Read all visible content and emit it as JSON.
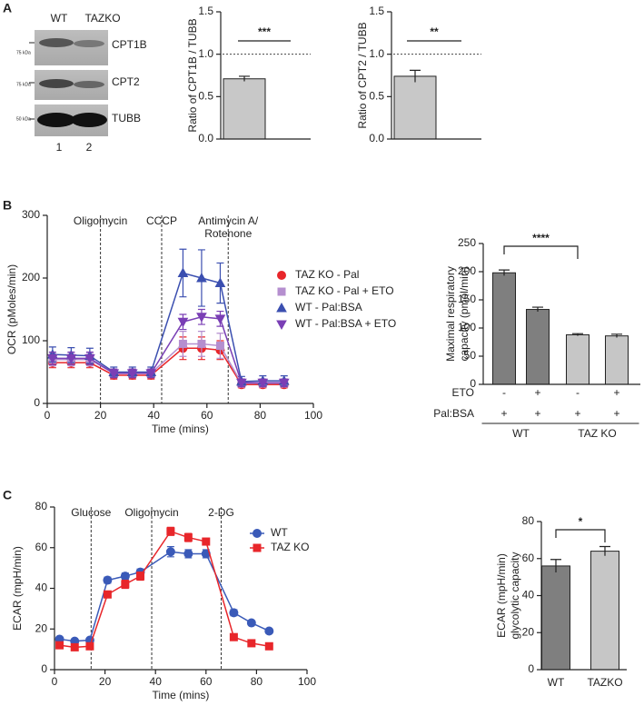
{
  "panel_labels": [
    "A",
    "B",
    "C"
  ],
  "blot": {
    "lanes": [
      "WT",
      "TAZKO"
    ],
    "bands": [
      "CPT1B",
      "CPT2",
      "TUBB"
    ],
    "sizes": [
      "75 kDa",
      "75 kDa",
      "50 kDa"
    ],
    "lane_numbers": [
      "1",
      "2"
    ]
  },
  "chart_data": [
    {
      "type": "bar",
      "ylabel": "Ratio of CPT1B / TUBB",
      "categories": [
        null
      ],
      "values": [
        0.71
      ],
      "errors": [
        0.03
      ],
      "color": "#c8c8c8",
      "ylim": [
        0,
        1.5
      ],
      "yticks": [
        {
          "value": 0,
          "label": "0.0"
        },
        0.5,
        {
          "value": 1,
          "label": "1.0"
        },
        1.5
      ],
      "reference_line": 1,
      "significance": "***"
    },
    {
      "type": "bar",
      "ylabel": "Ratio of CPT2 / TUBB",
      "categories": [
        null
      ],
      "values": [
        0.74
      ],
      "errors": [
        0.07
      ],
      "color": "#c8c8c8",
      "ylim": [
        0,
        1.5
      ],
      "yticks": [
        {
          "value": 0,
          "label": "0.0"
        },
        0.5,
        {
          "value": 1,
          "label": "1.0"
        },
        1.5
      ],
      "reference_line": 1,
      "significance": "**"
    },
    {
      "type": "line",
      "xlabel": "Time (mins)",
      "ylabel": "OCR (pMoles/min)",
      "x": [
        2,
        9,
        16,
        25,
        32,
        39,
        51,
        58,
        65,
        73,
        81,
        89
      ],
      "series": [
        {
          "name": "TAZ KO - Pal",
          "color": "#e8262a",
          "marker": "circle",
          "values": [
            65,
            65,
            65,
            45,
            45,
            45,
            88,
            88,
            85,
            30,
            30,
            30
          ],
          "errors": [
            8,
            8,
            8,
            6,
            6,
            6,
            18,
            18,
            15,
            5,
            5,
            5
          ]
        },
        {
          "name": "TAZ KO - Pal + ETO",
          "color": "#b58fcf",
          "marker": "square",
          "values": [
            70,
            70,
            70,
            48,
            48,
            48,
            95,
            95,
            92,
            32,
            32,
            32
          ],
          "errors": [
            10,
            10,
            10,
            7,
            7,
            7,
            20,
            20,
            20,
            6,
            6,
            6
          ]
        },
        {
          "name": "WT - Pal:BSA",
          "color": "#3b4fb0",
          "marker": "triangle",
          "values": [
            78,
            77,
            76,
            50,
            50,
            50,
            208,
            200,
            192,
            35,
            36,
            36
          ],
          "errors": [
            12,
            12,
            12,
            8,
            8,
            8,
            38,
            45,
            32,
            8,
            8,
            8
          ]
        },
        {
          "name": "WT - Pal:BSA + ETO",
          "color": "#7a3fb5",
          "marker": "triangle-down",
          "values": [
            72,
            72,
            72,
            48,
            48,
            48,
            130,
            138,
            135,
            33,
            33,
            33
          ],
          "errors": [
            10,
            10,
            10,
            7,
            7,
            7,
            12,
            12,
            12,
            6,
            6,
            6
          ]
        }
      ],
      "xlim": [
        0,
        100
      ],
      "xticks": [
        0,
        20,
        40,
        60,
        80,
        100
      ],
      "ylim": [
        0,
        300
      ],
      "yticks": [
        0,
        100,
        200,
        300
      ],
      "events": [
        {
          "x": 20,
          "label": [
            "Oligomycin"
          ]
        },
        {
          "x": 43,
          "label": [
            "CCCP"
          ]
        },
        {
          "x": 68,
          "label": [
            "Antimycin A/",
            "Rotenone"
          ]
        }
      ],
      "legend": "right"
    },
    {
      "type": "bar",
      "ylabel": [
        "Maximal respiratory",
        "capacity (pmol/min)"
      ],
      "categories": [
        null,
        null,
        null,
        null
      ],
      "values": [
        198,
        133,
        88,
        86
      ],
      "errors": [
        5,
        4,
        2,
        3
      ],
      "colors": [
        "#7f7f7f",
        "#7f7f7f",
        "#c6c6c6",
        "#c6c6c6"
      ],
      "ylim": [
        0,
        250
      ],
      "yticks": [
        0,
        50,
        100,
        150,
        200,
        250
      ],
      "significance": "****",
      "rows": [
        {
          "name": "ETO",
          "values": [
            "-",
            "+",
            "-",
            "+"
          ]
        },
        {
          "name": "Pal:BSA",
          "values": [
            "+",
            "+",
            "+",
            "+"
          ]
        }
      ],
      "groups": [
        "WT",
        "TAZ KO"
      ]
    },
    {
      "type": "line",
      "xlabel": "Time (mins)",
      "ylabel": "ECAR (mpH/min)",
      "x": [
        2,
        8,
        14,
        21,
        28,
        34,
        46,
        53,
        60,
        71,
        78,
        85
      ],
      "series": [
        {
          "name": "WT",
          "color": "#3a5ab8",
          "marker": "circle",
          "values": [
            15,
            14,
            14.5,
            44,
            46,
            48,
            58,
            57,
            57,
            28,
            23,
            19
          ],
          "errors": [
            0.8,
            0.5,
            0.5,
            1.5,
            1.5,
            1.5,
            2.5,
            2,
            2,
            1.5,
            1,
            1
          ]
        },
        {
          "name": "TAZ KO",
          "color": "#e8262a",
          "marker": "square",
          "values": [
            12,
            11,
            11.5,
            37,
            42,
            46,
            68,
            65,
            63,
            16,
            13,
            11.5
          ],
          "errors": [
            1,
            1,
            1,
            1.5,
            2,
            2,
            2,
            2,
            1.5,
            1,
            1,
            1
          ]
        }
      ],
      "xlim": [
        0,
        100
      ],
      "xticks": [
        0,
        20,
        40,
        60,
        80,
        100
      ],
      "ylim": [
        0,
        80
      ],
      "yticks": [
        0,
        20,
        40,
        60,
        80
      ],
      "events": [
        {
          "x": 14.5,
          "label": [
            "Glucose"
          ]
        },
        {
          "x": 38.5,
          "label": [
            "Oligomycin"
          ]
        },
        {
          "x": 66,
          "label": [
            "2-DG"
          ]
        }
      ],
      "legend": "upper right"
    },
    {
      "type": "bar",
      "ylabel": [
        "ECAR (mpH/min)",
        "glycolytic capacity"
      ],
      "categories": [
        "WT",
        "TAZKO"
      ],
      "values": [
        56,
        64
      ],
      "errors": [
        3.5,
        2.5
      ],
      "colors": [
        "#7f7f7f",
        "#c6c6c6"
      ],
      "ylim": [
        0,
        80
      ],
      "yticks": [
        0,
        20,
        40,
        60,
        80
      ],
      "significance": "*"
    }
  ]
}
